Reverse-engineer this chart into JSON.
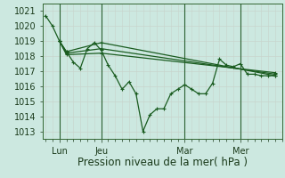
{
  "background_color": "#cce8e0",
  "grid_color": "#b8d8d0",
  "line_color": "#1a5c20",
  "title": "Pression niveau de la mer( hPa )",
  "xlabel_day_labels": [
    "Lun",
    "Jeu",
    "Mar",
    "Mer"
  ],
  "xlabel_day_positions": [
    1,
    4,
    10,
    14
  ],
  "vline_positions": [
    1,
    4,
    10,
    14
  ],
  "ylim": [
    1012.5,
    1021.5
  ],
  "yticks": [
    1013,
    1014,
    1015,
    1016,
    1017,
    1018,
    1019,
    1020,
    1021
  ],
  "xlim": [
    -0.2,
    17.0
  ],
  "title_fontsize": 8.5,
  "tick_fontsize": 7,
  "line1_x": [
    0,
    0.5,
    1.0,
    1.5,
    2.0,
    2.5,
    3.0,
    3.5,
    4.0,
    4.5,
    5.0,
    5.5,
    6.0,
    6.5,
    7.0,
    7.5,
    8.0,
    8.5,
    9.0,
    9.5,
    10.0,
    10.5,
    11.0,
    11.5,
    12.0,
    12.5,
    13.0,
    13.5,
    14.0,
    14.5,
    15.0,
    15.5,
    16.0,
    16.5
  ],
  "line1_y": [
    1020.7,
    1020.0,
    1019.0,
    1018.3,
    1017.6,
    1017.2,
    1018.5,
    1018.9,
    1018.4,
    1017.4,
    1016.7,
    1015.8,
    1016.3,
    1015.5,
    1013.0,
    1014.1,
    1014.5,
    1014.5,
    1015.5,
    1015.8,
    1016.1,
    1015.8,
    1015.5,
    1015.5,
    1016.2,
    1017.8,
    1017.4,
    1017.3,
    1017.5,
    1016.8,
    1016.8,
    1016.7,
    1016.7,
    1016.7
  ],
  "line2_x": [
    1.0,
    1.5,
    4.0,
    16.5
  ],
  "line2_y": [
    1019.0,
    1018.3,
    1018.9,
    1016.7
  ],
  "line3_x": [
    1.0,
    1.5,
    4.0,
    16.5
  ],
  "line3_y": [
    1019.0,
    1018.2,
    1018.5,
    1016.8
  ],
  "line4_x": [
    1.0,
    1.5,
    4.0,
    16.5
  ],
  "line4_y": [
    1019.0,
    1018.1,
    1018.2,
    1016.9
  ]
}
